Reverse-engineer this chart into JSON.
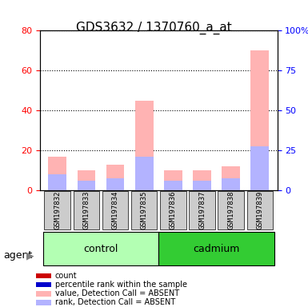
{
  "title": "GDS3632 / 1370760_a_at",
  "samples": [
    "GSM197832",
    "GSM197833",
    "GSM197834",
    "GSM197835",
    "GSM197836",
    "GSM197837",
    "GSM197838",
    "GSM197839"
  ],
  "groups": [
    "control",
    "control",
    "control",
    "control",
    "cadmium",
    "cadmium",
    "cadmium",
    "cadmium"
  ],
  "count_values": [
    0,
    0,
    0,
    0,
    0,
    0,
    0,
    0
  ],
  "rank_values": [
    0,
    0,
    0,
    0,
    0,
    0,
    0,
    0
  ],
  "absent_values": [
    17,
    10,
    13,
    45,
    10,
    10,
    12,
    70
  ],
  "absent_rank_values": [
    8,
    5,
    6,
    17,
    5,
    5,
    6,
    22
  ],
  "ylim_left": [
    0,
    80
  ],
  "ylim_right": [
    0,
    100
  ],
  "yticks_left": [
    0,
    20,
    40,
    60,
    80
  ],
  "yticks_right": [
    0,
    25,
    50,
    75,
    100
  ],
  "yticklabels_right": [
    "0",
    "25",
    "50",
    "75",
    "100%"
  ],
  "bar_width": 0.35,
  "color_count": "#cc0000",
  "color_rank": "#0000cc",
  "color_absent_value": "#ffb3b3",
  "color_absent_rank": "#b3b3ff",
  "group_control_color": "#b3ffb3",
  "group_cadmium_color": "#33cc33",
  "xlabel_area_color": "#cccccc",
  "legend_items": [
    {
      "color": "#cc0000",
      "label": "count"
    },
    {
      "color": "#0000cc",
      "label": "percentile rank within the sample"
    },
    {
      "color": "#ffb3b3",
      "label": "value, Detection Call = ABSENT"
    },
    {
      "color": "#b3b3ff",
      "label": "rank, Detection Call = ABSENT"
    }
  ],
  "agent_label": "agent"
}
